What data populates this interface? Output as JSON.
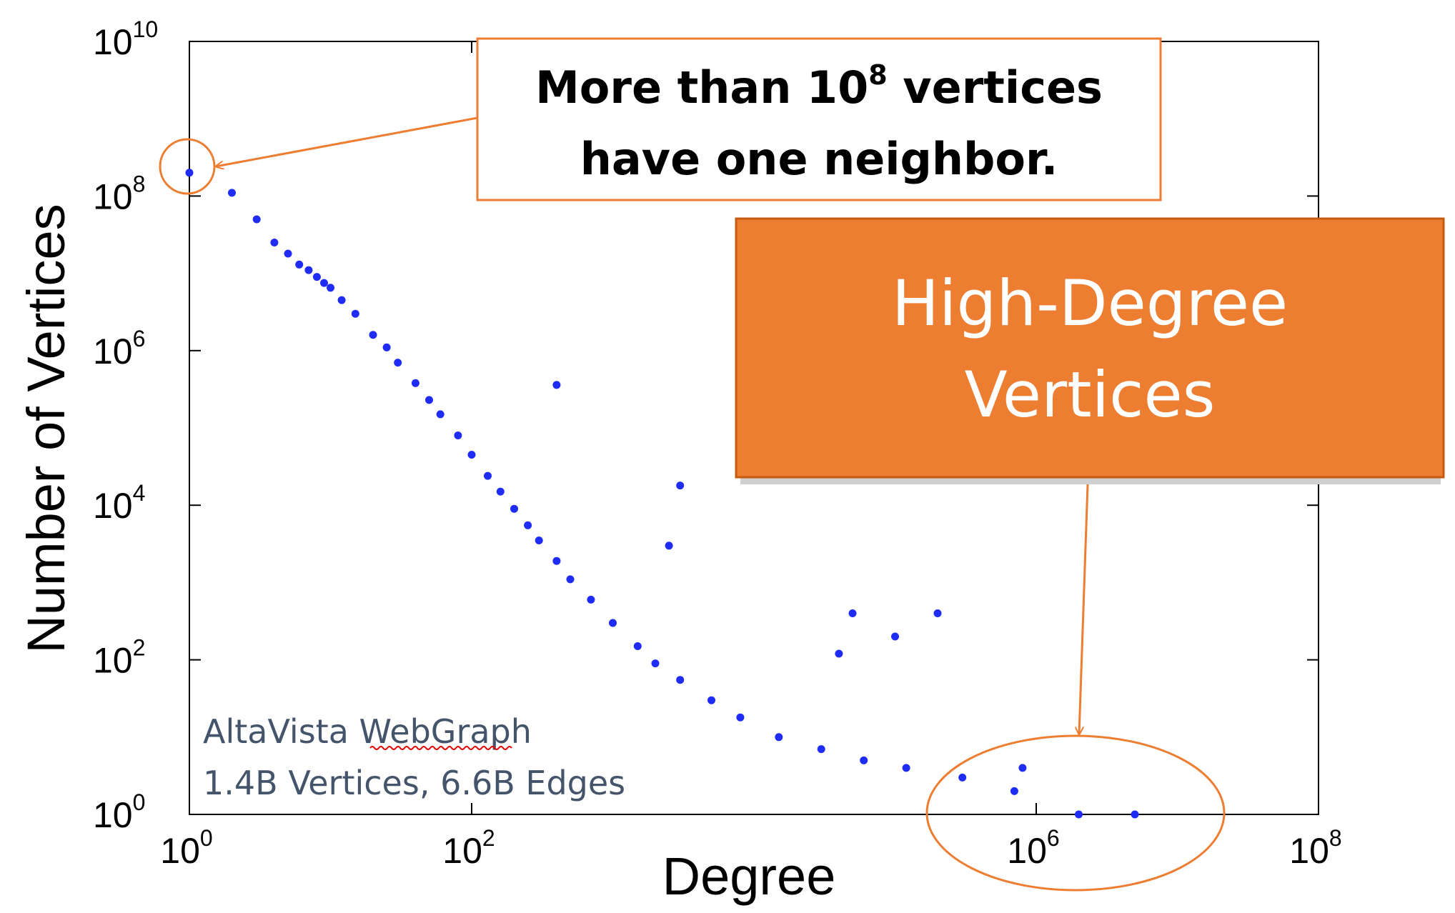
{
  "chart_data": {
    "type": "scatter",
    "title": "",
    "xlabel": "Degree",
    "ylabel": "Number of Vertices",
    "xscale": "log",
    "yscale": "log",
    "xlim": [
      1,
      100000000
    ],
    "ylim": [
      1,
      10000000000
    ],
    "x_ticks": [
      {
        "base": "10",
        "exp": "0"
      },
      {
        "base": "10",
        "exp": "2"
      },
      {
        "base": "10",
        "exp": "6"
      },
      {
        "base": "10",
        "exp": "8"
      }
    ],
    "y_ticks": [
      {
        "base": "10",
        "exp": "0"
      },
      {
        "base": "10",
        "exp": "2"
      },
      {
        "base": "10",
        "exp": "4"
      },
      {
        "base": "10",
        "exp": "6"
      },
      {
        "base": "10",
        "exp": "8"
      },
      {
        "base": "10",
        "exp": "10"
      }
    ],
    "grid": false,
    "marker_color": "#1f2cf5",
    "series": [
      {
        "points": [
          [
            1,
            200000000
          ],
          [
            2,
            110000000
          ],
          [
            3,
            50000000
          ],
          [
            4,
            25000000
          ],
          [
            5,
            18000000
          ],
          [
            6,
            13000000
          ],
          [
            7,
            11000000
          ],
          [
            8,
            9000000
          ],
          [
            9,
            7500000
          ],
          [
            10,
            6500000
          ],
          [
            12,
            4500000
          ],
          [
            15,
            3000000
          ],
          [
            20,
            1600000
          ],
          [
            25,
            1100000
          ],
          [
            30,
            700000
          ],
          [
            40,
            380000
          ],
          [
            50,
            230000
          ],
          [
            60,
            150000
          ],
          [
            80,
            80000
          ],
          [
            100,
            45000
          ],
          [
            130,
            24000
          ],
          [
            160,
            15000
          ],
          [
            200,
            9000
          ],
          [
            250,
            5500
          ],
          [
            300,
            3500
          ],
          [
            400,
            1900
          ],
          [
            500,
            1100
          ],
          [
            700,
            600
          ],
          [
            1000,
            300
          ],
          [
            1500,
            150
          ],
          [
            2000,
            90
          ],
          [
            3000,
            55
          ],
          [
            5000,
            30
          ],
          [
            8000,
            18
          ],
          [
            15000,
            10
          ],
          [
            30000,
            7
          ],
          [
            60000,
            5
          ],
          [
            120000,
            4
          ],
          [
            300000,
            3
          ],
          [
            700000,
            2
          ],
          [
            2000000,
            1
          ],
          [
            5000000,
            1
          ],
          [
            400,
            360000
          ],
          [
            3000,
            18000
          ],
          [
            2500,
            3000
          ],
          [
            50000,
            400
          ],
          [
            200000,
            400
          ],
          [
            40000,
            120
          ],
          [
            100000,
            200
          ],
          [
            800000,
            4
          ]
        ]
      }
    ],
    "annotations": {
      "callout_line1_prefix": "More than 10",
      "callout_line1_sup": "8",
      "callout_line1_suffix": " vertices",
      "callout_line2": "have one neighbor.",
      "high_degree_line1": "High-Degree",
      "high_degree_line2": "Vertices",
      "note_line1": "AltaVista WebGraph",
      "note_line2": "1.4B Vertices, 6.6B Edges"
    },
    "colors": {
      "accent": "#ed7d31",
      "accent_dark": "#c55a11",
      "note": "#44546a"
    }
  }
}
